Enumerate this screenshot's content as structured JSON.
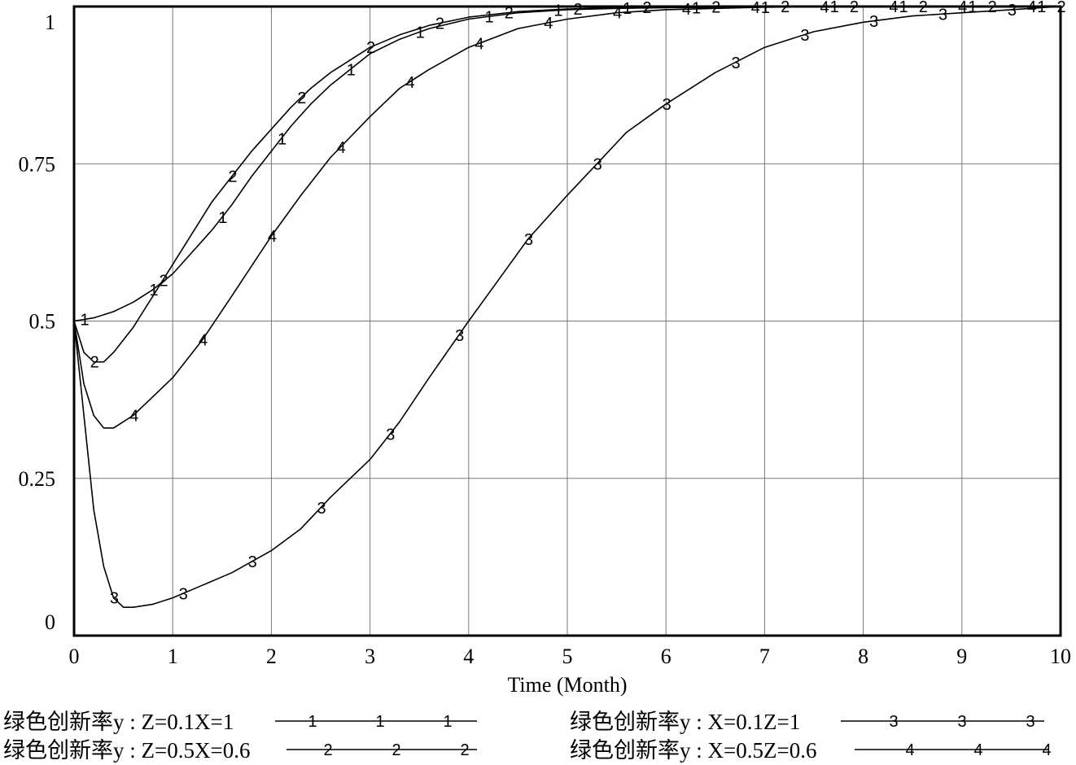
{
  "chart_data": {
    "type": "line",
    "title": "",
    "xlabel": "Time (Month)",
    "ylabel": "",
    "xlim": [
      0,
      10
    ],
    "ylim": [
      0,
      1
    ],
    "x_ticks": [
      "0",
      "1",
      "2",
      "3",
      "4",
      "5",
      "6",
      "7",
      "8",
      "9",
      "10"
    ],
    "y_ticks": [
      "0",
      "0.25",
      "0.5",
      "0.75",
      "1"
    ],
    "grid": true,
    "legend_position": "bottom",
    "series": [
      {
        "name": "绿色创新率y : Z=0.1X=1",
        "marker": "1",
        "x": [
          0,
          0.2,
          0.4,
          0.6,
          0.8,
          1.0,
          1.2,
          1.4,
          1.6,
          1.8,
          2.0,
          2.2,
          2.4,
          2.6,
          2.8,
          3.0,
          3.3,
          3.6,
          4.0,
          4.5,
          5.0,
          5.5,
          6,
          7,
          8,
          9,
          10
        ],
        "y": [
          0.5,
          0.505,
          0.515,
          0.53,
          0.55,
          0.575,
          0.61,
          0.645,
          0.685,
          0.73,
          0.77,
          0.81,
          0.845,
          0.875,
          0.9,
          0.925,
          0.948,
          0.965,
          0.98,
          0.99,
          0.995,
          0.997,
          0.998,
          0.999,
          1.0,
          1.0,
          1.0
        ],
        "marker_x": [
          0.1,
          0.8,
          1.5,
          2.1,
          2.8,
          3.5,
          4.2,
          4.9,
          5.6,
          6.3,
          7.0,
          7.7,
          8.4,
          9.1,
          9.8
        ]
      },
      {
        "name": "绿色创新率y : Z=0.5X=0.6",
        "marker": "2",
        "x": [
          0,
          0.1,
          0.2,
          0.3,
          0.4,
          0.6,
          0.8,
          1.0,
          1.2,
          1.4,
          1.6,
          1.8,
          2.0,
          2.2,
          2.4,
          2.6,
          2.8,
          3.0,
          3.3,
          3.6,
          4.0,
          4.5,
          5.0,
          5.5,
          6,
          7,
          8,
          9,
          10
        ],
        "y": [
          0.5,
          0.45,
          0.435,
          0.435,
          0.45,
          0.49,
          0.54,
          0.59,
          0.64,
          0.69,
          0.73,
          0.77,
          0.805,
          0.84,
          0.87,
          0.895,
          0.915,
          0.935,
          0.955,
          0.97,
          0.983,
          0.992,
          0.996,
          0.998,
          0.999,
          1.0,
          1.0,
          1.0,
          1.0
        ],
        "marker_x": [
          0.2,
          0.9,
          1.6,
          2.3,
          3.0,
          3.7,
          4.4,
          5.1,
          5.8,
          6.5,
          7.2,
          7.9,
          8.6,
          9.3,
          10.0
        ]
      },
      {
        "name": "绿色创新率y : X=0.1Z=1",
        "marker": "3",
        "x": [
          0,
          0.1,
          0.2,
          0.3,
          0.4,
          0.5,
          0.6,
          0.8,
          1.0,
          1.3,
          1.6,
          2.0,
          2.3,
          2.6,
          3.0,
          3.3,
          3.6,
          4.0,
          4.3,
          4.6,
          5.0,
          5.3,
          5.6,
          6.0,
          6.5,
          7.0,
          7.5,
          8.0,
          8.5,
          9.0,
          9.5,
          10
        ],
        "y": [
          0.5,
          0.35,
          0.2,
          0.11,
          0.06,
          0.045,
          0.045,
          0.05,
          0.06,
          0.08,
          0.1,
          0.135,
          0.17,
          0.22,
          0.28,
          0.34,
          0.41,
          0.5,
          0.565,
          0.63,
          0.7,
          0.75,
          0.8,
          0.845,
          0.895,
          0.935,
          0.96,
          0.975,
          0.985,
          0.99,
          0.995,
          1.0
        ],
        "marker_x": [
          0.4,
          1.1,
          1.8,
          2.5,
          3.2,
          3.9,
          4.6,
          5.3,
          6.0,
          6.7,
          7.4,
          8.1,
          8.8,
          9.5
        ]
      },
      {
        "name": "绿色创新率y : X=0.5Z=0.6",
        "marker": "4",
        "x": [
          0,
          0.1,
          0.2,
          0.3,
          0.4,
          0.5,
          0.6,
          0.8,
          1.0,
          1.3,
          1.6,
          2.0,
          2.3,
          2.6,
          3.0,
          3.3,
          3.6,
          4.0,
          4.5,
          5.0,
          5.5,
          6,
          6.5,
          7,
          8,
          9,
          10
        ],
        "y": [
          0.5,
          0.4,
          0.35,
          0.33,
          0.33,
          0.34,
          0.35,
          0.38,
          0.41,
          0.47,
          0.54,
          0.635,
          0.7,
          0.76,
          0.825,
          0.87,
          0.9,
          0.935,
          0.965,
          0.98,
          0.99,
          0.995,
          0.997,
          0.999,
          1.0,
          1.0,
          1.0
        ],
        "marker_x": [
          0.6,
          1.3,
          2.0,
          2.7,
          3.4,
          4.1,
          4.8,
          5.5,
          6.2,
          6.9,
          7.6,
          8.3,
          9.0,
          9.7
        ]
      }
    ]
  }
}
